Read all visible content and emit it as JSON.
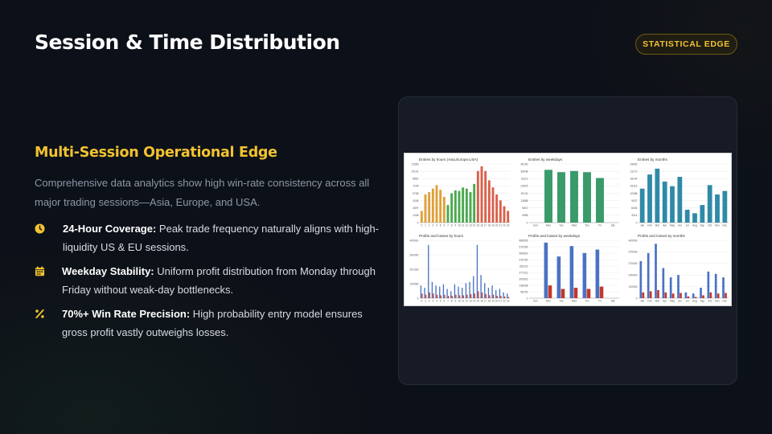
{
  "slide": {
    "title": "Session & Time Distribution",
    "badge": "STATISTICAL EDGE"
  },
  "content": {
    "subtitle": "Multi-Session Operational Edge",
    "description": "Comprehensive data analytics show high win-rate consistency across all major trading sessions—Asia, Europe, and USA.",
    "points": [
      {
        "icon": "clock-icon",
        "heading": "24-Hour Coverage:",
        "text": " Peak trade frequency naturally aligns with high-liquidity US & EU sessions."
      },
      {
        "icon": "calendar-icon",
        "heading": "Weekday Stability:",
        "text": " Uniform profit distribution from Monday through Friday without weak-day bottlenecks."
      },
      {
        "icon": "percent-icon",
        "heading": "70%+ Win Rate Precision:",
        "text": " High probability entry model ensures gross profit vastly outweighs losses."
      }
    ]
  },
  "colors": {
    "accent": "#f2c230",
    "background": "#0c1018",
    "panel": "#161b25"
  },
  "chart_data": [
    {
      "type": "bar",
      "title": "Entries by hours (Asia,Europe,USA)",
      "categories": [
        "0",
        "1",
        "2",
        "3",
        "4",
        "5",
        "6",
        "7",
        "8",
        "9",
        "10",
        "11",
        "12",
        "13",
        "14",
        "15",
        "16",
        "17",
        "18",
        "19",
        "20",
        "21",
        "22",
        "23"
      ],
      "values": [
        20,
        48,
        52,
        58,
        64,
        56,
        44,
        30,
        50,
        55,
        54,
        60,
        58,
        52,
        66,
        88,
        96,
        88,
        72,
        60,
        48,
        38,
        28,
        20
      ],
      "ytick_labels": [
        "11583",
        "10141",
        "8852",
        "7245",
        "5798",
        "4348",
        "2897",
        "1448",
        "0"
      ],
      "colors": [
        "#e0a03c",
        "#e0a03c",
        "#e0a03c",
        "#e0a03c",
        "#e0a03c",
        "#e0a03c",
        "#e0a03c",
        "#4aa84e",
        "#4aa84e",
        "#4aa84e",
        "#4aa84e",
        "#4aa84e",
        "#4aa84e",
        "#4aa84e",
        "#4aa84e",
        "#d9604a",
        "#d9604a",
        "#d9604a",
        "#d9604a",
        "#d9604a",
        "#d9604a",
        "#d9604a",
        "#d9604a",
        "#d9604a"
      ]
    },
    {
      "type": "bar",
      "title": "Entries by weekdays",
      "categories": [
        "Sun",
        "Mon",
        "Tue",
        "Wed",
        "Thu",
        "Fri",
        "Sat"
      ],
      "values": [
        0,
        90,
        86,
        88,
        86,
        76,
        0
      ],
      "ytick_labels": [
        "40150",
        "36048",
        "31113",
        "23625",
        "19740",
        "13888",
        "9870",
        "4985",
        "0"
      ],
      "colors": [
        "#3a9a6a"
      ]
    },
    {
      "type": "bar",
      "title": "Entries by months",
      "categories": [
        "Jan",
        "Feb",
        "Mar",
        "Apr",
        "May",
        "Jun",
        "Jul",
        "Aug",
        "Sep",
        "Oct",
        "Nov",
        "Dec"
      ],
      "values": [
        58,
        82,
        92,
        70,
        62,
        78,
        22,
        16,
        30,
        64,
        48,
        54
      ],
      "ytick_labels": [
        "24630",
        "21173",
        "18144",
        "15115",
        "12088",
        "9037",
        "6026",
        "3014",
        "0"
      ],
      "colors": [
        "#2f8aa8"
      ]
    },
    {
      "type": "bar",
      "title": "Profits and losses by hours",
      "categories": [
        "0",
        "1",
        "2",
        "3",
        "4",
        "5",
        "6",
        "7",
        "8",
        "9",
        "10",
        "11",
        "12",
        "13",
        "14",
        "15",
        "16",
        "17",
        "18",
        "19",
        "20",
        "21",
        "22",
        "23"
      ],
      "series": [
        {
          "values": [
            22,
            18,
            92,
            28,
            22,
            20,
            24,
            16,
            12,
            24,
            20,
            18,
            26,
            28,
            38,
            92,
            40,
            26,
            18,
            22,
            14,
            16,
            10,
            8
          ],
          "color": "#4a72c4"
        },
        {
          "values": [
            8,
            6,
            10,
            8,
            6,
            5,
            6,
            4,
            4,
            6,
            5,
            5,
            6,
            7,
            8,
            12,
            10,
            7,
            5,
            6,
            4,
            4,
            3,
            2
          ],
          "color": "#c0392b"
        }
      ],
      "ytick_labels": [
        "400001",
        "300000",
        "201330",
        "100560",
        "0"
      ]
    },
    {
      "type": "bar",
      "title": "Profits and losses by weekdays",
      "categories": [
        "Sun",
        "Mon",
        "Tue",
        "Wed",
        "Thu",
        "Fri",
        "Sat"
      ],
      "series": [
        {
          "values": [
            0,
            96,
            72,
            90,
            78,
            84,
            0
          ],
          "color": "#4a72c4"
        },
        {
          "values": [
            0,
            22,
            16,
            18,
            16,
            20,
            0
          ],
          "color": "#c0392b"
        }
      ],
      "ytick_labels": [
        "689505",
        "570265",
        "489502",
        "415760",
        "351102",
        "277221",
        "200502",
        "138008",
        "68750",
        "0"
      ]
    },
    {
      "type": "bar",
      "title": "Profits and losses by months",
      "categories": [
        "Jan",
        "Feb",
        "Mar",
        "Apr",
        "May",
        "Jun",
        "Jul",
        "Aug",
        "Sep",
        "Oct",
        "Nov",
        "Dec"
      ],
      "series": [
        {
          "values": [
            64,
            78,
            94,
            52,
            36,
            40,
            10,
            8,
            18,
            46,
            42,
            36
          ],
          "color": "#4a72c4"
        },
        {
          "values": [
            10,
            12,
            14,
            10,
            8,
            9,
            3,
            2,
            5,
            10,
            8,
            9
          ],
          "color": "#c0392b"
        }
      ],
      "ytick_labels": [
        "400000",
        "370000",
        "270000",
        "240000",
        "120000",
        "0"
      ]
    }
  ]
}
